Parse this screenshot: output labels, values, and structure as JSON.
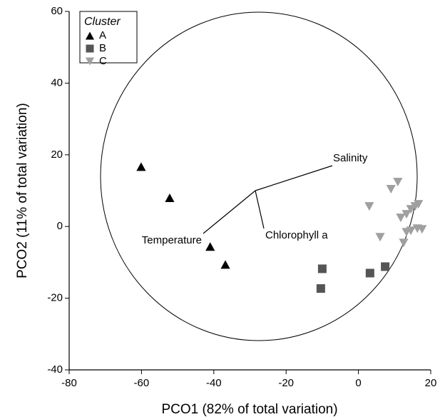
{
  "chart_data": {
    "type": "scatter",
    "xlabel": "PCO1 (82% of total variation)",
    "ylabel": "PCO2 (11% of total variation)",
    "xlim": [
      -80,
      20
    ],
    "ylim": [
      -40,
      60
    ],
    "xticks": [
      -80,
      -60,
      -40,
      -20,
      0,
      20
    ],
    "yticks": [
      -40,
      -20,
      0,
      20,
      40,
      60
    ],
    "legend_title": "Cluster",
    "legend": "upper left",
    "series": [
      {
        "name": "A",
        "color": "#000000",
        "marker": "triangle-up",
        "x": [
          -60.1,
          -52.2,
          -41,
          -36.8
        ],
        "values": [
          16.7,
          8,
          -5.6,
          -10.6
        ]
      },
      {
        "name": "B",
        "color": "#555555",
        "marker": "square",
        "x": [
          -10,
          -10.4,
          3.2,
          7.4
        ],
        "values": [
          -11.8,
          -17.3,
          -13,
          -11.2
        ]
      },
      {
        "name": "C",
        "color": "#a0a0a0",
        "marker": "triangle-down",
        "x": [
          10.9,
          9,
          3,
          11.7,
          13.3,
          14.5,
          15.7,
          16.6,
          13.3,
          14.5,
          16.3,
          17.6,
          12.5,
          6
        ],
        "values": [
          12.4,
          10.4,
          5.6,
          2.4,
          3.4,
          4.8,
          5.6,
          6.2,
          -1.6,
          -1.2,
          -0.6,
          -0.8,
          -4.6,
          -3
        ]
      }
    ],
    "annotations": [
      "Salinity",
      "Temperature",
      "Chlorophyll a"
    ]
  }
}
